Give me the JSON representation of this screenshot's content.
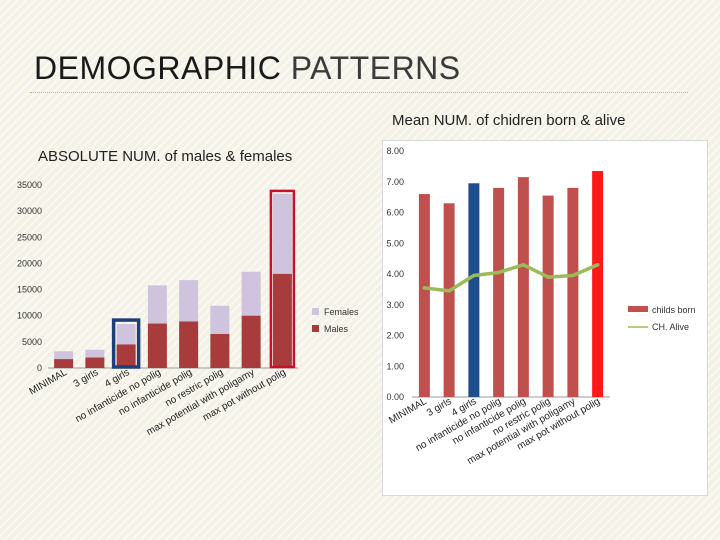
{
  "slide": {
    "title_main": "DEMOGRAPHIC",
    "title_accent": "PATTERNS"
  },
  "chart_data": [
    {
      "type": "bar",
      "title": "ABSOLUTE NUM. of males & females",
      "stacked": true,
      "categories": [
        "MINIMAL",
        "3 girls",
        "4 girls",
        "no infanticide no polig",
        "no infanticide polig",
        "no restric polig",
        "max potential with poligamy",
        "max pot without polig"
      ],
      "series": [
        {
          "name": "Males",
          "values": [
            1700,
            2000,
            4500,
            8500,
            8900,
            6500,
            10000,
            18000
          ],
          "color": "#a83b3b"
        },
        {
          "name": "Females",
          "values": [
            1500,
            1500,
            3900,
            7300,
            7900,
            5400,
            8400,
            15300
          ],
          "color": "#cfc3dd"
        }
      ],
      "yticks": [
        0,
        5000,
        10000,
        15000,
        20000,
        25000,
        30000,
        35000
      ],
      "ylim": [
        0,
        35000
      ],
      "legend": "right",
      "highlight": {
        "blue_box": "4 girls",
        "red_box": "max pot without polig"
      }
    },
    {
      "type": "bar+line",
      "title": "Mean NUM. of chidren born & alive",
      "categories": [
        "MINIMAL",
        "3 girls",
        "4 girls",
        "no infanticide no polig",
        "no infanticide polig",
        "no restric polig",
        "max potential with poligamy",
        "max pot without polig"
      ],
      "series": [
        {
          "name": "childs born",
          "type": "bar",
          "values": [
            6.6,
            6.3,
            6.95,
            6.8,
            7.15,
            6.55,
            6.8,
            7.35
          ],
          "colors": [
            "#c0504d",
            "#c0504d",
            "#1f4e8c",
            "#c0504d",
            "#c0504d",
            "#c0504d",
            "#c0504d",
            "#ff1a1a"
          ]
        },
        {
          "name": "CH. Alive",
          "type": "line",
          "values": [
            3.55,
            3.45,
            3.95,
            4.05,
            4.3,
            3.9,
            3.95,
            4.3
          ],
          "color": "#9bbb59"
        }
      ],
      "yticks": [
        "0.00",
        "1.00",
        "2.00",
        "3.00",
        "4.00",
        "5.00",
        "6.00",
        "7.00",
        "8.00"
      ],
      "ylim": [
        0,
        8
      ],
      "legend": "right"
    }
  ]
}
